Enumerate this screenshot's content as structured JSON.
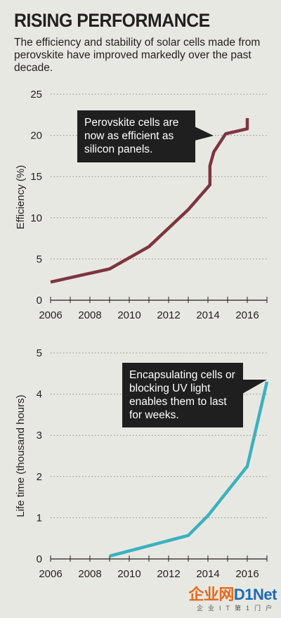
{
  "header": {
    "title": "RISING PERFORMANCE",
    "subtitle": "The efficiency and stability of solar cells made from perovskite have improved markedly over the past decade."
  },
  "chart_data": [
    {
      "type": "line",
      "title": "",
      "xlabel": "",
      "ylabel": "Efficiency (%)",
      "xlim": [
        2006,
        2017
      ],
      "ylim": [
        0,
        25
      ],
      "x_ticks": [
        2006,
        2008,
        2010,
        2012,
        2014,
        2016
      ],
      "y_ticks": [
        0,
        5,
        10,
        15,
        20,
        25
      ],
      "grid": "horizontal dotted",
      "color": "#7d3540",
      "x": [
        2006,
        2009,
        2011,
        2013,
        2014.1,
        2014.1,
        2014.3,
        2014.9,
        2016,
        2016,
        2016
      ],
      "y": [
        2.2,
        3.8,
        6.5,
        11,
        14,
        16.3,
        18,
        20.2,
        20.8,
        21.3,
        22.1
      ],
      "annotation": "Perovskite cells are now as efficient as silicon panels."
    },
    {
      "type": "line",
      "title": "",
      "xlabel": "",
      "ylabel": "Life time (thousand hours)",
      "xlim": [
        2006,
        2017
      ],
      "ylim": [
        0,
        5
      ],
      "x_ticks": [
        2006,
        2008,
        2010,
        2012,
        2014,
        2016
      ],
      "y_ticks": [
        0,
        1,
        2,
        3,
        4,
        5
      ],
      "grid": "horizontal dotted",
      "color": "#3bb1bf",
      "x": [
        2009,
        2013,
        2014,
        2016,
        2017
      ],
      "y": [
        0.07,
        0.57,
        1.05,
        2.25,
        4.3
      ],
      "annotation": "Encapsulating cells or blocking UV light enables them to last for weeks."
    }
  ],
  "watermark": {
    "brand_a": "企业网",
    "brand_b": "D1Net",
    "sub": "企业IT第1门户"
  }
}
